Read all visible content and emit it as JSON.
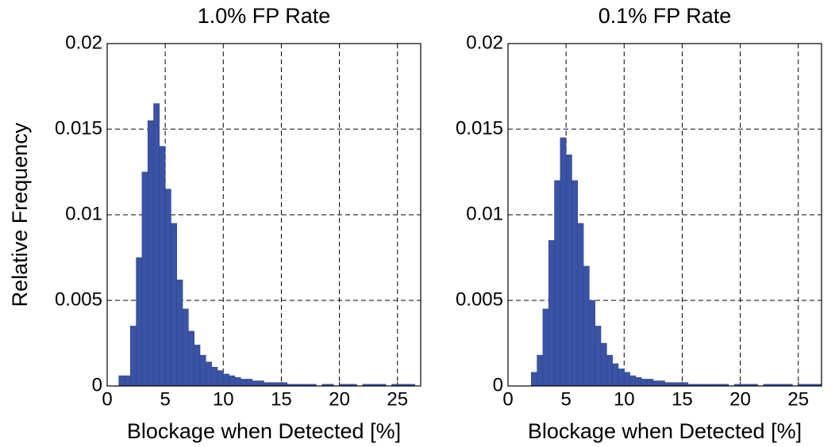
{
  "chart_data": [
    {
      "type": "histogram",
      "title": "1.0% FP Rate",
      "xlabel": "Blockage when Detected [%]",
      "ylabel": "Relative Frequency",
      "color": "#3a53a4",
      "grid": true,
      "xlim": [
        0,
        27
      ],
      "ylim": [
        0,
        0.02
      ],
      "xticks": [
        0,
        5,
        10,
        15,
        20,
        25
      ],
      "yticks": [
        0,
        0.005,
        0.01,
        0.015,
        0.02
      ],
      "bins": [
        1,
        1.5,
        2,
        2.5,
        3,
        3.5,
        4,
        4.5,
        5,
        5.5,
        6,
        6.5,
        7,
        7.5,
        8,
        8.5,
        9,
        9.5,
        10,
        10.5,
        11,
        11.5,
        12,
        12.5,
        13,
        13.5,
        14,
        14.5,
        15,
        15.5,
        16,
        16.5,
        17,
        17.5,
        18,
        18.5,
        19,
        19.5,
        20,
        20.5,
        21,
        21.5,
        22,
        22.5,
        23,
        23.5,
        24,
        24.5,
        25,
        25.5,
        26,
        26.5
      ],
      "values": [
        0.0006,
        0.0006,
        0.0035,
        0.0075,
        0.0125,
        0.0155,
        0.0165,
        0.014,
        0.0115,
        0.0095,
        0.0062,
        0.0045,
        0.0032,
        0.0024,
        0.0018,
        0.0014,
        0.0011,
        0.0009,
        0.0007,
        0.0006,
        0.0005,
        0.0004,
        0.0004,
        0.0003,
        0.0003,
        0.0002,
        0.0002,
        0.0002,
        0.0002,
        0.0001,
        0.0001,
        0.0001,
        0.0001,
        0.0001,
        0,
        0.0001,
        0.0001,
        0,
        0.0001,
        0.0001,
        0.0001,
        0,
        0.0001,
        0.0001,
        0.0001,
        0.0001,
        0,
        0.0001,
        0.0001,
        0.0001,
        0.0001
      ]
    },
    {
      "type": "histogram",
      "title": "0.1% FP Rate",
      "xlabel": "Blockage when Detected [%]",
      "color": "#3a53a4",
      "grid": true,
      "xlim": [
        0,
        27
      ],
      "ylim": [
        0,
        0.02
      ],
      "xticks": [
        0,
        5,
        10,
        15,
        20,
        25
      ],
      "yticks": [
        0,
        0.005,
        0.01,
        0.015,
        0.02
      ],
      "bins": [
        2,
        2.5,
        3,
        3.5,
        4,
        4.5,
        5,
        5.5,
        6,
        6.5,
        7,
        7.5,
        8,
        8.5,
        9,
        9.5,
        10,
        10.5,
        11,
        11.5,
        12,
        12.5,
        13,
        13.5,
        14,
        14.5,
        15,
        15.5,
        16,
        16.5,
        17,
        17.5,
        18,
        18.5,
        19,
        19.5,
        20,
        20.5,
        21,
        21.5,
        22,
        22.5,
        23,
        23.5,
        24,
        24.5,
        25,
        25.5,
        26,
        26.5,
        27
      ],
      "values": [
        0.0008,
        0.0018,
        0.0045,
        0.0085,
        0.012,
        0.0145,
        0.0135,
        0.012,
        0.0095,
        0.007,
        0.005,
        0.0035,
        0.0025,
        0.0018,
        0.0013,
        0.001,
        0.0008,
        0.0006,
        0.0005,
        0.0004,
        0.0004,
        0.0003,
        0.0003,
        0.0002,
        0.0002,
        0.0002,
        0.0002,
        0.0001,
        0.0001,
        0.0001,
        0.0001,
        0.0001,
        0.0001,
        0.0001,
        0,
        0.0001,
        0.0001,
        0.0001,
        0.0001,
        0,
        0.0001,
        0.0001,
        0.0001,
        0.0001,
        0.0001,
        0,
        0.0001,
        0.0001,
        0.0001,
        0.0001
      ]
    }
  ]
}
